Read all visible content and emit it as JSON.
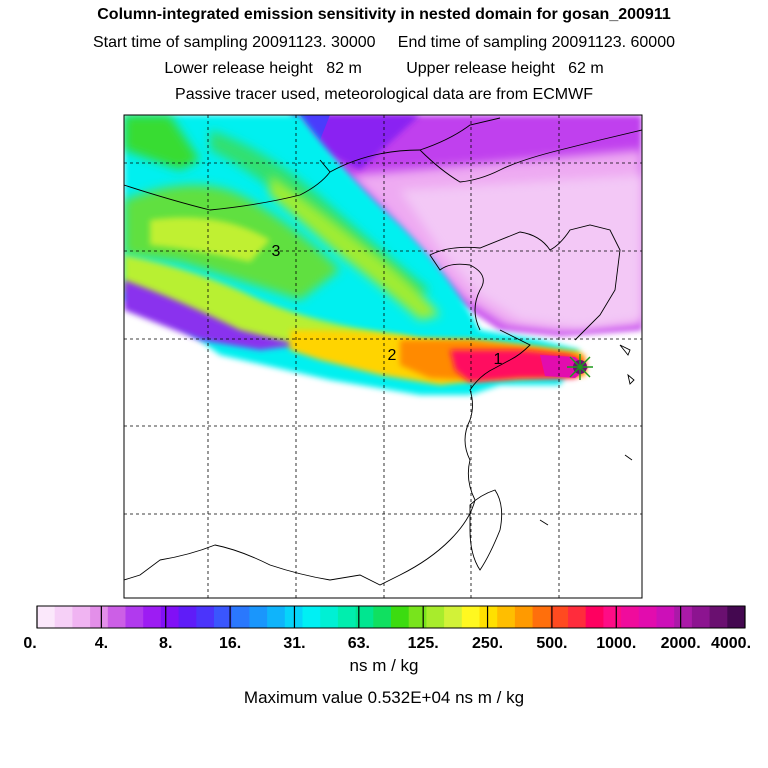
{
  "header": {
    "title": "Column-integrated emission sensitivity in nested domain for gosan_200911",
    "sampling_line": "Start time of sampling 20091123. 30000     End time of sampling 20091123. 60000",
    "release_line": "Lower release height   82 m          Upper release height   62 m",
    "tracer_line": "Passive tracer used, meteorological data are from ECMWF"
  },
  "chart_data": {
    "type": "heatmap",
    "title": "Column-integrated emission sensitivity in nested domain for gosan_200911",
    "units": "ns m / kg",
    "maximum_value_text": "Maximum value  0.532E+04 ns m / kg",
    "colorbar": {
      "tick_labels": [
        "0.",
        "4.",
        "8.",
        "16.",
        "31.",
        "63.",
        "125.",
        "250.",
        "500.",
        "1000.",
        "2000.",
        "4000."
      ],
      "tick_values": [
        0,
        4,
        8,
        16,
        31,
        63,
        125,
        250,
        500,
        1000,
        2000,
        4000
      ],
      "colors": [
        "#fbe8fb",
        "#f6d0f7",
        "#f0b4f2",
        "#e38fe9",
        "#cc5fe6",
        "#b13aee",
        "#9d1cf3",
        "#8110f6",
        "#5f1cf8",
        "#4b34fb",
        "#3a56fd",
        "#2a78fd",
        "#1a96fc",
        "#0fb4fb",
        "#06d4fa",
        "#00f0f4",
        "#00f0d4",
        "#00eeae",
        "#00e690",
        "#10e060",
        "#3cdc10",
        "#78e41c",
        "#a8ec2c",
        "#d2f238",
        "#fff820",
        "#ffe000",
        "#ffbe00",
        "#ff9a00",
        "#ff6f0c",
        "#ff4a20",
        "#ff2c3c",
        "#ff0060",
        "#fe0c86",
        "#f00c9c",
        "#e20cae",
        "#cc10b8",
        "#aa1aa8",
        "#8c1490",
        "#6a1070",
        "#440850"
      ]
    },
    "plume_labels": [
      "1",
      "2",
      "3"
    ],
    "grid": true
  }
}
